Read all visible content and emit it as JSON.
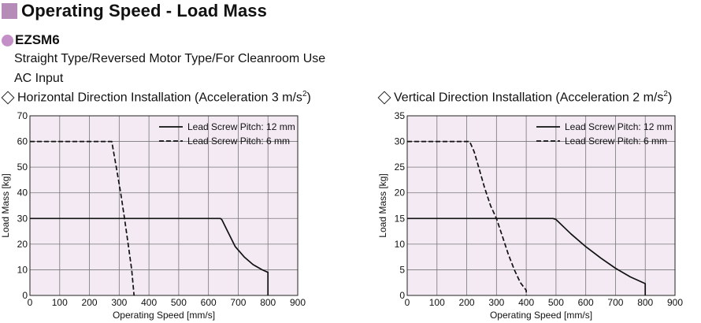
{
  "header": {
    "title": "Operating Speed - Load Mass",
    "accent_color": "#b58bb8"
  },
  "product": {
    "model": "EZSM6",
    "dot_color": "#c48fc6",
    "description_lines": [
      "Straight Type/Reversed Motor Type/For Cleanroom Use",
      "AC Input"
    ]
  },
  "chart_data": [
    {
      "type": "line",
      "title_prefix": "Horizontal Direction Installation (Acceleration 3 m/s",
      "title_sup": "2",
      "title_suffix": ")",
      "xlabel": "Operating Speed [mm/s]",
      "ylabel": "Load Mass [kg]",
      "xlim": [
        0,
        900
      ],
      "ylim": [
        0,
        70
      ],
      "xticks": [
        0,
        100,
        200,
        300,
        400,
        500,
        600,
        700,
        800,
        900
      ],
      "yticks": [
        0,
        10,
        20,
        30,
        40,
        50,
        60,
        70
      ],
      "grid": true,
      "background": "#f3eaf3",
      "legend_position": "top-right",
      "series": [
        {
          "name": "Lead Screw Pitch: 12 mm",
          "style": "solid",
          "points": [
            [
              0,
              30
            ],
            [
              640,
              30
            ],
            [
              645,
              29.5
            ],
            [
              660,
              26
            ],
            [
              690,
              19
            ],
            [
              720,
              15
            ],
            [
              750,
              12
            ],
            [
              780,
              10
            ],
            [
              800,
              9
            ],
            [
              800,
              0
            ]
          ]
        },
        {
          "name": "Lead Screw Pitch: 6 mm",
          "style": "dashed",
          "points": [
            [
              0,
              60
            ],
            [
              275,
              60
            ],
            [
              290,
              50
            ],
            [
              305,
              40
            ],
            [
              318,
              30
            ],
            [
              330,
              20
            ],
            [
              342,
              10
            ],
            [
              350,
              0
            ]
          ]
        }
      ]
    },
    {
      "type": "line",
      "title_prefix": "Vertical Direction Installation (Acceleration 2 m/s",
      "title_sup": "2",
      "title_suffix": ")",
      "xlabel": "Operating Speed [mm/s]",
      "ylabel": "Load Mass [kg]",
      "xlim": [
        0,
        900
      ],
      "ylim": [
        0,
        35
      ],
      "xticks": [
        0,
        100,
        200,
        300,
        400,
        500,
        600,
        700,
        800,
        900
      ],
      "yticks": [
        0,
        5,
        10,
        15,
        20,
        25,
        30,
        35
      ],
      "grid": true,
      "background": "#f3eaf3",
      "legend_position": "top-right",
      "series": [
        {
          "name": "Lead Screw Pitch: 12 mm",
          "style": "solid",
          "points": [
            [
              0,
              15
            ],
            [
              490,
              15
            ],
            [
              500,
              14.8
            ],
            [
              550,
              12
            ],
            [
              600,
              9.5
            ],
            [
              650,
              7.3
            ],
            [
              700,
              5.3
            ],
            [
              750,
              3.6
            ],
            [
              800,
              2.3
            ],
            [
              800,
              0
            ]
          ]
        },
        {
          "name": "Lead Screw Pitch: 6 mm",
          "style": "dashed",
          "points": [
            [
              0,
              30
            ],
            [
              210,
              30
            ],
            [
              225,
              28
            ],
            [
              240,
              25
            ],
            [
              260,
              21
            ],
            [
              280,
              17.5
            ],
            [
              300,
              15
            ],
            [
              320,
              11.5
            ],
            [
              340,
              8
            ],
            [
              360,
              5
            ],
            [
              380,
              2.5
            ],
            [
              400,
              1
            ],
            [
              400,
              0
            ]
          ]
        }
      ]
    }
  ]
}
